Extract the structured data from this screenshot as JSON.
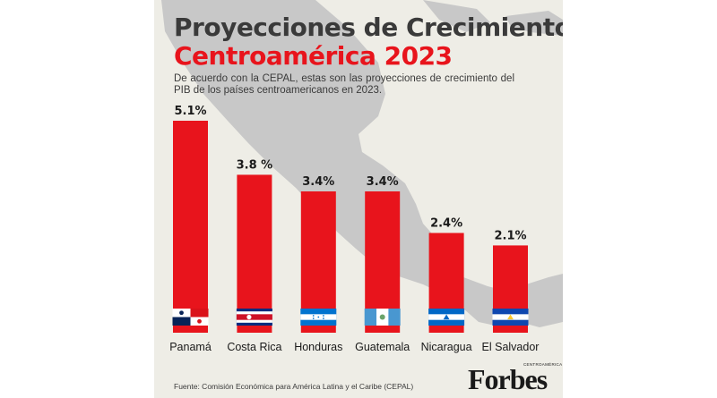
{
  "title": {
    "line1": "Proyecciones de Crecimiento",
    "line2": "Centroamérica 2023"
  },
  "subtitle": "De acuerdo con la CEPAL, estas son las proyecciones de crecimiento del PIB de los países centroamericanos en 2023.",
  "source": "Fuente: Comisión Económica para América Latina y el Caribe (CEPAL)",
  "brand": {
    "logo": "Forbes",
    "sub": "CENTROAMÉRICA"
  },
  "colors": {
    "bar": "#e8141c",
    "background": "#eeede6",
    "map": "#c8c8c8",
    "title_dark": "#3a3a3a",
    "title_red": "#e8141c"
  },
  "chart_data": {
    "type": "bar",
    "categories": [
      "Panamá",
      "Costa Rica",
      "Honduras",
      "Guatemala",
      "Nicaragua",
      "El Salvador"
    ],
    "values": [
      5.1,
      3.8,
      3.4,
      3.4,
      2.4,
      2.1
    ],
    "value_labels": [
      "5.1%",
      "3.8 %",
      "3.4%",
      "3.4%",
      "2.4%",
      "2.1%"
    ],
    "flags": [
      "panama-flag",
      "costa-rica-flag",
      "honduras-flag",
      "guatemala-flag",
      "nicaragua-flag",
      "el-salvador-flag"
    ],
    "unit": "%",
    "ylim": [
      0,
      5.1
    ],
    "grid": false,
    "legend": "none"
  }
}
